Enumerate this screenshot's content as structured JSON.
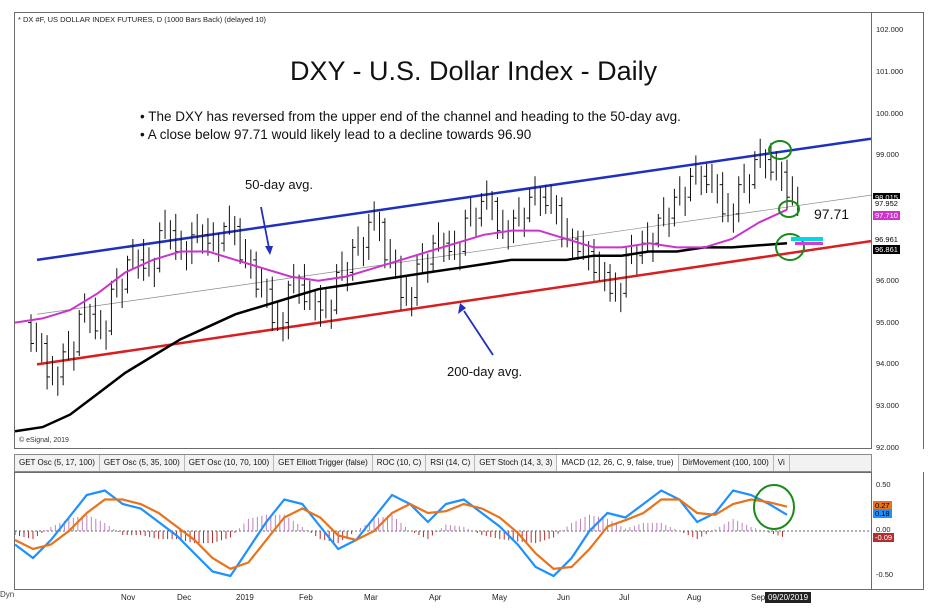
{
  "header": {
    "symbol_line": "* DX #F, US DOLLAR INDEX FUTURES, D (1000 Bars Back) (delayed 10)",
    "copyright": "© eSignal, 2019"
  },
  "annotations": {
    "title": "DXY - U.S. Dollar Index - Daily",
    "bullet_1": "• The DXY has reversed from the upper end of the channel and heading to the 50-day avg.",
    "bullet_2": "• A close below 97.71 would likely lead to a decline towards 96.90",
    "label_50": "50-day avg.",
    "label_200": "200-day avg.",
    "label_9771": "97.71"
  },
  "tabs": [
    "GET Osc (5, 17, 100)",
    "GET Osc (5, 35, 100)",
    "GET Osc (10, 70, 100)",
    "GET Elliott Trigger (false)",
    "ROC (10, C)",
    "RSI (14, C)",
    "GET Stoch (14, 3, 3)",
    "MACD (12, 26, C, 9, false, true)",
    "DirMovement (100, 100)",
    "Vi"
  ],
  "bottom_left": "Dyn",
  "colors": {
    "upper_channel": "#1f2fbf",
    "lower_channel": "#d81e1e",
    "ma50": "#cc33cc",
    "ma200": "#000000",
    "macd_line": "#1e90ff",
    "signal_line": "#e8731a",
    "circle": "#1a8a1a",
    "hist_pos": "#c080c0",
    "hist_neg": "#b03030"
  },
  "chart_data": [
    {
      "type": "candlestick",
      "title": "DXY - U.S. Dollar Index - Daily",
      "instrument": "DX #F, US DOLLAR INDEX FUTURES",
      "x_labels": [
        "Nov",
        "Dec",
        "2019",
        "Feb",
        "Mar",
        "Apr",
        "May",
        "Jun",
        "Jul",
        "Aug",
        "Sep"
      ],
      "y_ticks": [
        "102.000",
        "101.000",
        "100.000",
        "99.000",
        "98.000",
        "97.000",
        "96.000",
        "95.000",
        "94.000",
        "93.000",
        "92.000"
      ],
      "ylim": [
        92.0,
        102.0
      ],
      "price_tags": [
        "98.015",
        "97.952",
        "97.710",
        "96.961",
        "96.861"
      ],
      "date_tag": "09/20/2019",
      "series": [
        {
          "name": "50-day avg.",
          "values": [
            95.0,
            95.1,
            95.3,
            95.7,
            96.2,
            96.5,
            96.7,
            96.7,
            96.5,
            96.3,
            96.1,
            96.0,
            96.1,
            96.3,
            96.5,
            96.7,
            96.9,
            97.1,
            97.2,
            97.2,
            97.0,
            96.8,
            96.8,
            96.9,
            96.8,
            96.8,
            97.0,
            97.4,
            97.7
          ]
        },
        {
          "name": "200-day avg.",
          "values": [
            92.4,
            92.5,
            92.8,
            93.3,
            93.8,
            94.2,
            94.6,
            94.9,
            95.2,
            95.4,
            95.6,
            95.8,
            95.9,
            96.0,
            96.1,
            96.2,
            96.3,
            96.4,
            96.5,
            96.5,
            96.5,
            96.6,
            96.6,
            96.7,
            96.7,
            96.8,
            96.8,
            96.85,
            96.9
          ]
        }
      ],
      "candles": [
        {
          "o": 95.0,
          "h": 95.2,
          "l": 94.3,
          "c": 94.5
        },
        {
          "o": 94.5,
          "h": 94.7,
          "l": 93.4,
          "c": 93.7
        },
        {
          "o": 93.7,
          "h": 94.5,
          "l": 93.5,
          "c": 94.3
        },
        {
          "o": 94.3,
          "h": 95.3,
          "l": 94.2,
          "c": 95.2
        },
        {
          "o": 95.2,
          "h": 95.6,
          "l": 94.6,
          "c": 94.8
        },
        {
          "o": 94.8,
          "h": 96.0,
          "l": 94.7,
          "c": 95.8
        },
        {
          "o": 95.8,
          "h": 96.6,
          "l": 95.7,
          "c": 96.5
        },
        {
          "o": 96.5,
          "h": 97.0,
          "l": 96.0,
          "c": 96.3
        },
        {
          "o": 96.3,
          "h": 97.4,
          "l": 96.2,
          "c": 97.2
        },
        {
          "o": 97.2,
          "h": 97.6,
          "l": 96.5,
          "c": 96.7
        },
        {
          "o": 96.7,
          "h": 97.4,
          "l": 96.4,
          "c": 97.1
        },
        {
          "o": 97.1,
          "h": 97.5,
          "l": 96.6,
          "c": 96.9
        },
        {
          "o": 96.9,
          "h": 97.4,
          "l": 96.7,
          "c": 97.3
        },
        {
          "o": 97.3,
          "h": 97.5,
          "l": 96.4,
          "c": 96.5
        },
        {
          "o": 96.5,
          "h": 96.7,
          "l": 95.6,
          "c": 95.8
        },
        {
          "o": 95.8,
          "h": 96.1,
          "l": 94.8,
          "c": 95.0
        },
        {
          "o": 95.0,
          "h": 96.0,
          "l": 94.6,
          "c": 95.9
        },
        {
          "o": 95.9,
          "h": 96.4,
          "l": 95.3,
          "c": 95.5
        },
        {
          "o": 95.5,
          "h": 95.9,
          "l": 94.9,
          "c": 95.3
        },
        {
          "o": 95.3,
          "h": 96.4,
          "l": 95.2,
          "c": 96.2
        },
        {
          "o": 96.2,
          "h": 97.0,
          "l": 96.0,
          "c": 96.8
        },
        {
          "o": 96.8,
          "h": 97.6,
          "l": 96.5,
          "c": 97.4
        },
        {
          "o": 97.4,
          "h": 97.5,
          "l": 96.3,
          "c": 96.5
        },
        {
          "o": 96.5,
          "h": 96.6,
          "l": 95.3,
          "c": 95.6
        },
        {
          "o": 95.6,
          "h": 96.6,
          "l": 95.4,
          "c": 96.4
        },
        {
          "o": 96.4,
          "h": 97.1,
          "l": 96.2,
          "c": 96.9
        },
        {
          "o": 96.9,
          "h": 97.2,
          "l": 96.5,
          "c": 96.7
        },
        {
          "o": 96.7,
          "h": 97.7,
          "l": 96.6,
          "c": 97.5
        },
        {
          "o": 97.5,
          "h": 98.1,
          "l": 97.3,
          "c": 97.9
        },
        {
          "o": 97.9,
          "h": 98.0,
          "l": 97.0,
          "c": 97.2
        },
        {
          "o": 97.2,
          "h": 97.7,
          "l": 96.9,
          "c": 97.5
        },
        {
          "o": 97.5,
          "h": 98.2,
          "l": 97.4,
          "c": 98.0
        },
        {
          "o": 98.0,
          "h": 98.3,
          "l": 97.6,
          "c": 97.8
        },
        {
          "o": 97.8,
          "h": 98.0,
          "l": 96.8,
          "c": 97.0
        },
        {
          "o": 97.0,
          "h": 97.2,
          "l": 96.5,
          "c": 96.7
        },
        {
          "o": 96.7,
          "h": 97.0,
          "l": 96.0,
          "c": 96.2
        },
        {
          "o": 96.2,
          "h": 96.4,
          "l": 95.5,
          "c": 95.7
        },
        {
          "o": 95.7,
          "h": 96.8,
          "l": 95.6,
          "c": 96.6
        },
        {
          "o": 96.6,
          "h": 97.2,
          "l": 96.4,
          "c": 96.9
        },
        {
          "o": 96.9,
          "h": 97.6,
          "l": 96.8,
          "c": 97.5
        },
        {
          "o": 97.5,
          "h": 98.2,
          "l": 97.3,
          "c": 98.0
        },
        {
          "o": 98.0,
          "h": 98.7,
          "l": 97.9,
          "c": 98.5
        },
        {
          "o": 98.5,
          "h": 98.8,
          "l": 98.1,
          "c": 98.3
        },
        {
          "o": 98.3,
          "h": 98.6,
          "l": 97.4,
          "c": 97.6
        },
        {
          "o": 97.6,
          "h": 98.5,
          "l": 97.4,
          "c": 98.3
        },
        {
          "o": 98.3,
          "h": 99.1,
          "l": 98.2,
          "c": 98.9
        },
        {
          "o": 98.9,
          "h": 99.3,
          "l": 98.4,
          "c": 98.6
        },
        {
          "o": 98.6,
          "h": 98.9,
          "l": 97.7,
          "c": 98.0
        }
      ]
    },
    {
      "type": "line",
      "title": "MACD (12, 26, C, 9, false, true)",
      "y_ticks": [
        "0.50",
        "0.00",
        "-0.50"
      ],
      "ylim": [
        -0.6,
        0.6
      ],
      "value_tags": [
        "0.27",
        "0.18",
        "-0.09"
      ],
      "series": [
        {
          "name": "MACD",
          "values": [
            -0.15,
            -0.3,
            -0.1,
            0.15,
            0.4,
            0.45,
            0.3,
            0.25,
            0.1,
            -0.05,
            -0.25,
            -0.45,
            -0.5,
            -0.2,
            0.1,
            0.35,
            0.3,
            0.05,
            -0.2,
            -0.1,
            0.15,
            0.4,
            0.3,
            0.1,
            0.3,
            0.35,
            0.2,
            0.05,
            -0.15,
            -0.4,
            -0.5,
            -0.3,
            0.0,
            0.2,
            0.15,
            0.3,
            0.45,
            0.35,
            0.1,
            0.2,
            0.45,
            0.4,
            0.3,
            0.18
          ]
        },
        {
          "name": "Signal",
          "values": [
            -0.1,
            -0.2,
            -0.15,
            0.0,
            0.2,
            0.35,
            0.35,
            0.3,
            0.2,
            0.05,
            -0.1,
            -0.3,
            -0.42,
            -0.35,
            -0.1,
            0.15,
            0.25,
            0.15,
            -0.05,
            -0.1,
            0.0,
            0.2,
            0.3,
            0.2,
            0.22,
            0.3,
            0.25,
            0.15,
            -0.02,
            -0.25,
            -0.42,
            -0.4,
            -0.2,
            0.05,
            0.12,
            0.2,
            0.35,
            0.35,
            0.2,
            0.18,
            0.3,
            0.35,
            0.32,
            0.27
          ]
        }
      ]
    }
  ]
}
